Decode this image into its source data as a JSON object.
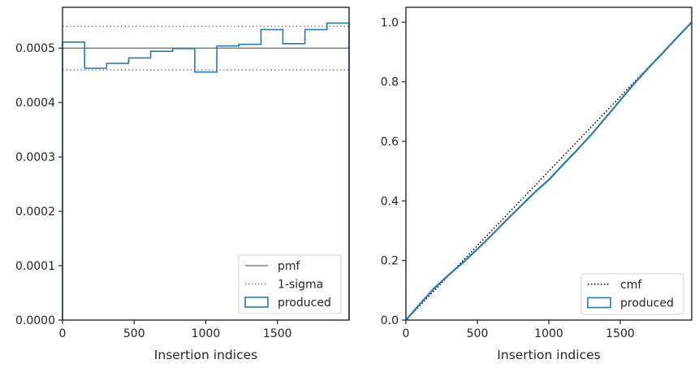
{
  "chart_data": [
    {
      "type": "step",
      "xlabel": "Insertion indices",
      "ylabel": "",
      "xlim": [
        0,
        2000
      ],
      "ylim": [
        0,
        0.000575
      ],
      "xticks": [
        0,
        500,
        1000,
        1500
      ],
      "xtick_labels": [
        "0",
        "500",
        "1000",
        "1500"
      ],
      "yticks": [
        0,
        0.0001,
        0.0002,
        0.0003,
        0.0004,
        0.0005
      ],
      "ytick_labels": [
        "0.0000",
        "0.0001",
        "0.0002",
        "0.0003",
        "0.0004",
        "0.0005"
      ],
      "legend_position": "lower-right",
      "reference_lines": [
        {
          "name": "pmf",
          "value": 0.0005,
          "style": "solid",
          "color": "#808080"
        },
        {
          "name": "1-sigma",
          "value": 0.00054,
          "style": "dotted",
          "color": "#808080"
        },
        {
          "name": "1-sigma",
          "value": 0.00046,
          "style": "dotted",
          "color": "#808080"
        }
      ],
      "series": [
        {
          "name": "produced",
          "color": "#2a7ab0",
          "bin_edges": [
            0,
            154,
            308,
            462,
            615,
            769,
            923,
            1077,
            1231,
            1385,
            1538,
            1692,
            1846,
            2000
          ],
          "values": [
            0.000511,
            0.000463,
            0.000472,
            0.000482,
            0.000494,
            0.000499,
            0.000456,
            0.000504,
            0.000507,
            0.000534,
            0.000508,
            0.000534,
            0.000546
          ]
        }
      ],
      "legend": [
        {
          "label": "pmf",
          "kind": "line-solid",
          "color": "#808080"
        },
        {
          "label": "1-sigma",
          "kind": "line-dotted",
          "color": "#808080"
        },
        {
          "label": "produced",
          "kind": "patch",
          "color": "#2a7ab0"
        }
      ]
    },
    {
      "type": "line",
      "xlabel": "Insertion indices",
      "ylabel": "",
      "xlim": [
        0,
        2000
      ],
      "ylim": [
        0,
        1.05
      ],
      "xticks": [
        0,
        500,
        1000,
        1500
      ],
      "xtick_labels": [
        "0",
        "500",
        "1000",
        "1500"
      ],
      "yticks": [
        0,
        0.2,
        0.4,
        0.6,
        0.8,
        1.0
      ],
      "ytick_labels": [
        "0.0",
        "0.2",
        "0.4",
        "0.6",
        "0.8",
        "1.0"
      ],
      "legend_position": "lower-right",
      "series": [
        {
          "name": "cmf",
          "style": "dotted",
          "color": "#000000",
          "x": [
            0,
            2000
          ],
          "y": [
            0,
            1.0
          ]
        },
        {
          "name": "produced",
          "style": "solid",
          "color": "#2a7ab0",
          "x": [
            0,
            100,
            200,
            300,
            400,
            500,
            600,
            700,
            800,
            900,
            1000,
            1100,
            1200,
            1300,
            1400,
            1500,
            1600,
            1700,
            1800,
            1900,
            2000
          ],
          "y": [
            0,
            0.055,
            0.108,
            0.152,
            0.193,
            0.238,
            0.285,
            0.334,
            0.381,
            0.428,
            0.471,
            0.522,
            0.572,
            0.624,
            0.681,
            0.738,
            0.795,
            0.848,
            0.898,
            0.95,
            1.0
          ]
        }
      ],
      "legend": [
        {
          "label": "cmf",
          "kind": "line-dotted",
          "color": "#000000"
        },
        {
          "label": "produced",
          "kind": "patch",
          "color": "#2a7ab0"
        }
      ]
    }
  ]
}
